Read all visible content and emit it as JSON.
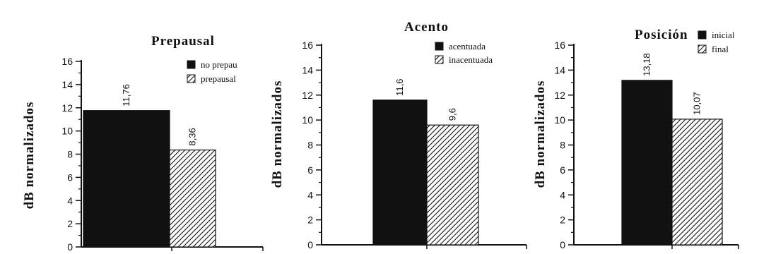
{
  "chart_data": [
    {
      "type": "bar",
      "title": "Prepausal",
      "ylabel": "dB normalizados",
      "ylim": [
        0,
        16
      ],
      "yticks": [
        0,
        2,
        4,
        6,
        8,
        10,
        12,
        14,
        16
      ],
      "series": [
        {
          "name": "no prepau",
          "value": 11.76,
          "label": "11,76",
          "fill": "solid"
        },
        {
          "name": "prepausal",
          "value": 8.36,
          "label": "8,36",
          "fill": "hatched"
        }
      ],
      "legend": "top-right"
    },
    {
      "type": "bar",
      "title": "Acento",
      "ylabel": "dB normalizados",
      "ylim": [
        0,
        16
      ],
      "yticks": [
        0,
        2,
        4,
        6,
        8,
        10,
        12,
        14,
        16
      ],
      "series": [
        {
          "name": "acentuada",
          "value": 11.6,
          "label": "11,6",
          "fill": "solid"
        },
        {
          "name": "inacentuada",
          "value": 9.6,
          "label": "9,6",
          "fill": "hatched"
        }
      ],
      "legend": "top-right"
    },
    {
      "type": "bar",
      "title": "Posición",
      "ylabel": "dB normalizados",
      "ylim": [
        0,
        16
      ],
      "yticks": [
        0,
        2,
        4,
        6,
        8,
        10,
        12,
        14,
        16
      ],
      "series": [
        {
          "name": "inicial",
          "value": 13.18,
          "label": "13,18",
          "fill": "solid"
        },
        {
          "name": "final",
          "value": 10.07,
          "label": "10,07",
          "fill": "hatched"
        }
      ],
      "legend": "top-right"
    }
  ],
  "colors": {
    "ink": "#111111",
    "hatch_bg": "#ffffff"
  }
}
